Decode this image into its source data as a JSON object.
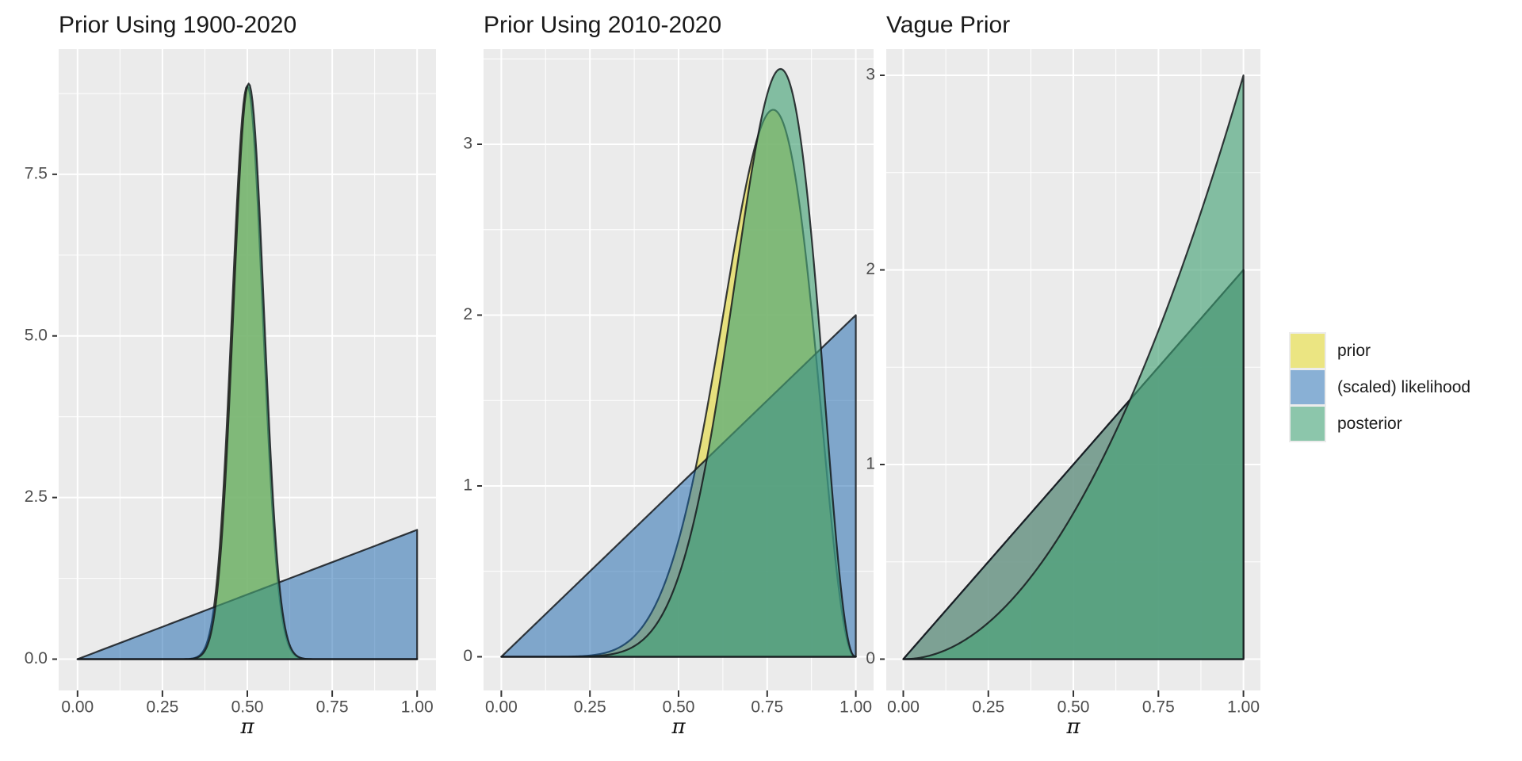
{
  "figure": {
    "kind": "beta-binomial prior / scaled likelihood / posterior comparison, three panels"
  },
  "chart_data": {
    "type": "area",
    "x_axis": {
      "label": "π",
      "range": [
        0,
        1
      ],
      "ticks": [
        {
          "v": 0,
          "label": "0.00"
        },
        {
          "v": 0.25,
          "label": "0.25"
        },
        {
          "v": 0.5,
          "label": "0.50"
        },
        {
          "v": 0.75,
          "label": "0.75"
        },
        {
          "v": 1,
          "label": "1.00"
        }
      ],
      "minor": [
        0.125,
        0.375,
        0.625,
        0.875
      ]
    },
    "panels": [
      {
        "id": "prior-1900-2020",
        "title": "Prior Using 1900-2020",
        "ylim": [
          0,
          9.43
        ],
        "y_ticks": [
          {
            "v": 0,
            "label": "0.0"
          },
          {
            "v": 2.5,
            "label": "2.5"
          },
          {
            "v": 5,
            "label": "5.0"
          },
          {
            "v": 7.5,
            "label": "7.5"
          }
        ],
        "y_minor": [
          1.25,
          3.75,
          6.25,
          8.75
        ],
        "notes": "narrow prior/posterior bell peaked ~8.9 near pi=0.49; scaled likelihood is the line 2*pi",
        "layers": [
          {
            "role": "prior",
            "dist": "beta",
            "alpha": 62,
            "beta": 62
          },
          {
            "role": "likelihood",
            "dist": "beta",
            "alpha": 2,
            "beta": 1
          },
          {
            "role": "posterior",
            "dist": "beta",
            "alpha": 63,
            "beta": 62
          }
        ]
      },
      {
        "id": "prior-2010-2020",
        "title": "Prior Using 2010-2020",
        "ylim": [
          0,
          3.56
        ],
        "y_ticks": [
          {
            "v": 0,
            "label": "0"
          },
          {
            "v": 1,
            "label": "1"
          },
          {
            "v": 2,
            "label": "2"
          },
          {
            "v": 3,
            "label": "3"
          }
        ],
        "y_minor": [
          0.5,
          1.5,
          2.5,
          3.5
        ],
        "notes": "prior bump peaked ~3.15 at pi~0.77 (yellow sliver on left), posterior peaked ~3.35 at pi~0.79, likelihood line 2*pi",
        "layers": [
          {
            "role": "prior",
            "dist": "beta",
            "alpha": 8.9,
            "beta": 3.4
          },
          {
            "role": "likelihood",
            "dist": "beta",
            "alpha": 2,
            "beta": 1
          },
          {
            "role": "posterior",
            "dist": "beta",
            "alpha": 9.9,
            "beta": 3.4
          }
        ]
      },
      {
        "id": "vague-prior",
        "title": "Vague Prior",
        "ylim": [
          0,
          3.14
        ],
        "y_ticks": [
          {
            "v": 0,
            "label": "0"
          },
          {
            "v": 1,
            "label": "1"
          },
          {
            "v": 2,
            "label": "2"
          },
          {
            "v": 3,
            "label": "3"
          }
        ],
        "y_minor": [
          0.5,
          1.5,
          2.5
        ],
        "notes": "prior and scaled likelihood coincide on the line 2*pi (reaching 2 at pi=1); posterior is 3*pi^2 reaching 3 at pi=1; curves cross at pi=2/3",
        "layers": [
          {
            "role": "prior",
            "dist": "beta",
            "alpha": 2,
            "beta": 1
          },
          {
            "role": "likelihood",
            "dist": "beta",
            "alpha": 2,
            "beta": 1
          },
          {
            "role": "posterior",
            "dist": "beta",
            "alpha": 3,
            "beta": 1
          }
        ]
      }
    ],
    "style": {
      "panel_bg": "#EBEBEB",
      "grid": "#FFFFFF",
      "outline": "#15191C",
      "tick_text": "#4D4D4D",
      "title_text": "#1A1A1A",
      "fills": {
        "prior": {
          "color": "#E4DC58",
          "opacity": 0.75
        },
        "likelihood": {
          "color": "#1361AB",
          "opacity": 0.5
        },
        "posterior": {
          "color": "#46A377",
          "opacity": 0.64
        }
      }
    }
  },
  "legend": {
    "items": [
      {
        "id": "prior",
        "label": "prior",
        "swatch": "#EBE582"
      },
      {
        "id": "likelihood",
        "label": "(scaled) likelihood",
        "swatch": "#89B0D5"
      },
      {
        "id": "posterior",
        "label": "posterior",
        "swatch": "#8CC6AB"
      }
    ]
  }
}
